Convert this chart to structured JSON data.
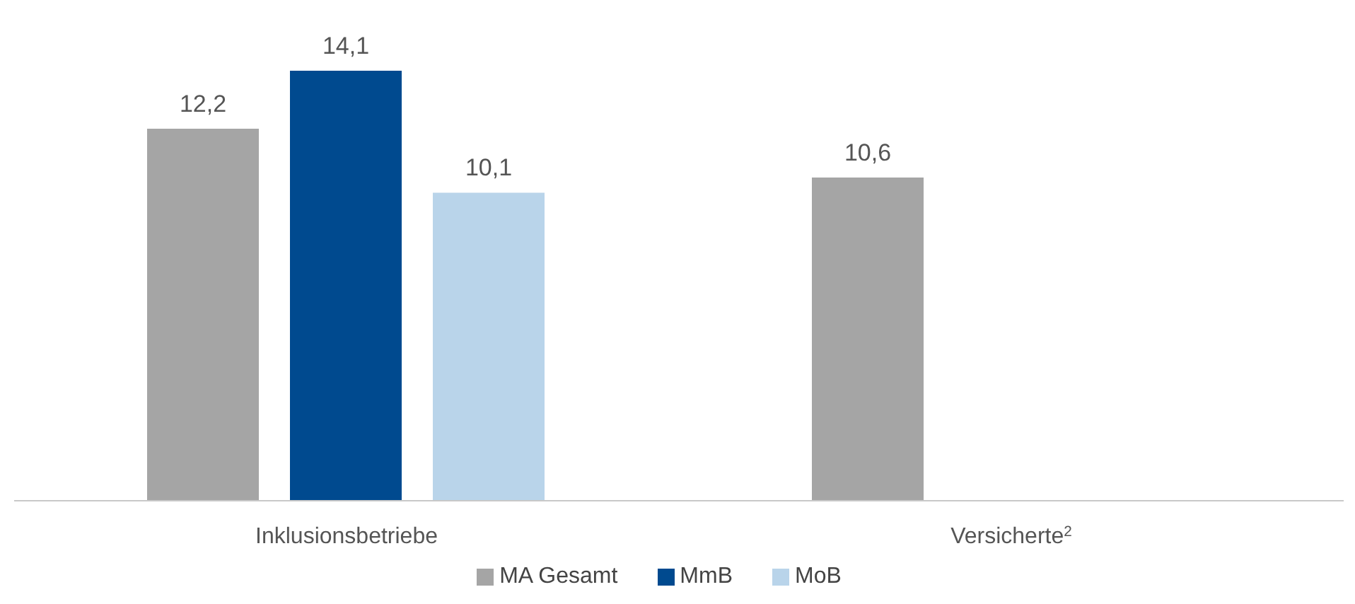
{
  "chart_data": {
    "type": "bar",
    "categories": [
      "Inklusionsbetriebe",
      "Versicherte$^{2}$"
    ],
    "series": [
      {
        "name": "MA Gesamt",
        "color": "#a5a5a5",
        "values": [
          12.2,
          10.6
        ],
        "value_labels": [
          "12,2",
          "10,6"
        ]
      },
      {
        "name": "MmB",
        "color": "#004a8f",
        "values": [
          14.1,
          null
        ],
        "value_labels": [
          "14,1",
          null
        ]
      },
      {
        "name": "MoB",
        "color": "#b9d4ea",
        "values": [
          10.1,
          null
        ],
        "value_labels": [
          "10,1",
          null
        ]
      }
    ],
    "legend": "bottom"
  }
}
